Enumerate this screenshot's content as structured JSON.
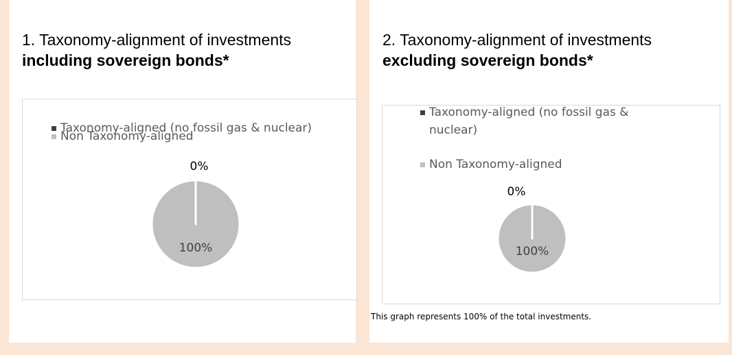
{
  "chart_data": [
    {
      "type": "pie",
      "title": "1. Taxonomy-alignment of investments",
      "subtitle": "including sovereign bonds*",
      "categories": [
        "Taxonomy-aligned (no fossil gas & nuclear)",
        "Non Taxonomy-aligned"
      ],
      "values": [
        0,
        100
      ],
      "value_labels": [
        "0%",
        "100%"
      ],
      "colors": [
        "#404040",
        "#bfbfbf"
      ]
    },
    {
      "type": "pie",
      "title": "2. Taxonomy-alignment of investments",
      "subtitle": "excluding sovereign bonds*",
      "categories": [
        "Taxonomy-aligned (no fossil gas & nuclear)",
        "Non Taxonomy-aligned"
      ],
      "values": [
        0,
        100
      ],
      "value_labels": [
        "0%",
        "100%"
      ],
      "colors": [
        "#404040",
        "#bfbfbf"
      ],
      "note": "This graph represents 100% of the total investments."
    }
  ]
}
